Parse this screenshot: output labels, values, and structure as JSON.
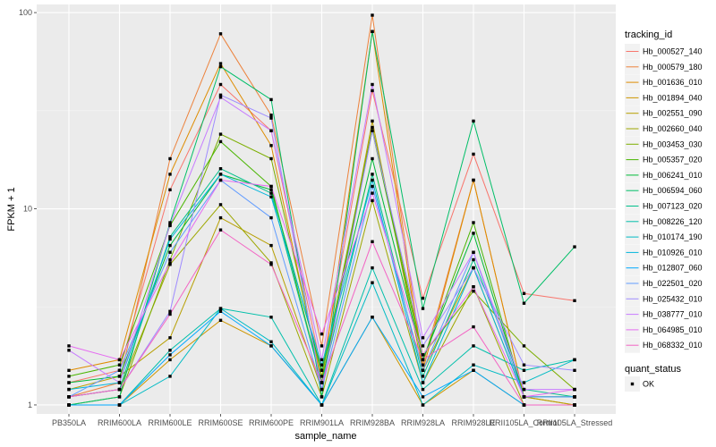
{
  "chart_data": {
    "type": "line",
    "xlabel": "sample_name",
    "ylabel": "FPKM + 1",
    "y_scale": "log10",
    "ylim": [
      0.9,
      110
    ],
    "y_ticks": [
      1,
      10,
      100
    ],
    "y_tick_labels": [
      "1",
      "10",
      "100"
    ],
    "grid": true,
    "legend_position": "right",
    "legend_title": "tracking_id",
    "status_legend_title": "quant_status",
    "status_legend_items": [
      "OK"
    ],
    "categories": [
      "PB350LA",
      "RRIM600LA",
      "RRIM600LE",
      "RRIM600SE",
      "RRIM600PE",
      "RRIM901LA",
      "RRIM928BA",
      "RRIM928LA",
      "RRIM928LE",
      "RRII105LA_Control",
      "RRII105LA_Stressed"
    ],
    "series": [
      {
        "name": "Hb_000527_140",
        "color": "#F8766D",
        "values": [
          1.3,
          1.5,
          12.5,
          43,
          25,
          1.5,
          40,
          3.5,
          19,
          3.7,
          3.4
        ]
      },
      {
        "name": "Hb_000579_180",
        "color": "#EC823C",
        "values": [
          1.1,
          1.3,
          18,
          78,
          30,
          2.0,
          97,
          1.6,
          14,
          1.1,
          1.1
        ]
      },
      {
        "name": "Hb_001636_010",
        "color": "#DE8C00",
        "values": [
          1.5,
          1.7,
          15,
          55,
          21,
          1.3,
          80,
          1.5,
          14,
          1.1,
          1.0
        ]
      },
      {
        "name": "Hb_001894_040",
        "color": "#CD9600",
        "values": [
          1.0,
          1.0,
          1.7,
          2.7,
          2.0,
          1.0,
          2.8,
          1.0,
          1.5,
          1.0,
          1.0
        ]
      },
      {
        "name": "Hb_002551_090",
        "color": "#B79F00",
        "values": [
          1.2,
          1.4,
          2.2,
          9.0,
          6.5,
          1.2,
          28,
          1.5,
          5.0,
          1.1,
          1.0
        ]
      },
      {
        "name": "Hb_002660_040",
        "color": "#9DA700",
        "values": [
          1.1,
          1.2,
          5.2,
          10.5,
          5.3,
          1.1,
          11,
          1.3,
          4.0,
          1.0,
          1.0
        ]
      },
      {
        "name": "Hb_003453_030",
        "color": "#7CAE00",
        "values": [
          1.0,
          1.1,
          5.5,
          24,
          18,
          1.4,
          26,
          1.8,
          3.8,
          2.0,
          1.2
        ]
      },
      {
        "name": "Hb_005357_020",
        "color": "#49B500",
        "values": [
          1.4,
          1.6,
          8.2,
          22,
          13,
          1.3,
          25,
          1.7,
          8.5,
          1.1,
          1.1
        ]
      },
      {
        "name": "Hb_006241_010",
        "color": "#00BA38",
        "values": [
          1.3,
          1.4,
          6.5,
          15,
          12.5,
          1.5,
          18,
          1.7,
          7.5,
          1.1,
          1.1
        ]
      },
      {
        "name": "Hb_006594_060",
        "color": "#00BE67",
        "values": [
          1.0,
          1.1,
          8.5,
          53,
          36,
          1.1,
          80,
          3.1,
          28,
          3.3,
          6.4
        ]
      },
      {
        "name": "Hb_007123_020",
        "color": "#00C08B",
        "values": [
          1.1,
          1.2,
          7.2,
          16,
          12,
          1.3,
          15,
          1.4,
          5.5,
          1.2,
          1.1
        ]
      },
      {
        "name": "Hb_008226_120",
        "color": "#00BFAA",
        "values": [
          1.0,
          1.0,
          1.9,
          3.1,
          2.8,
          1.0,
          5.0,
          1.2,
          2.0,
          1.5,
          1.7
        ]
      },
      {
        "name": "Hb_010174_190",
        "color": "#00BBC4",
        "values": [
          1.0,
          1.0,
          1.4,
          3.1,
          2.1,
          1.0,
          4.2,
          1.0,
          1.6,
          1.3,
          1.7
        ]
      },
      {
        "name": "Hb_010926_010",
        "color": "#00B5DC",
        "values": [
          1.2,
          1.3,
          7.0,
          15,
          11.5,
          1.6,
          14,
          1.3,
          5.0,
          1.1,
          1.1
        ]
      },
      {
        "name": "Hb_012807_060",
        "color": "#00A9FF",
        "values": [
          1.0,
          1.0,
          1.8,
          3.0,
          2.0,
          1.0,
          2.8,
          1.1,
          1.5,
          1.0,
          1.0
        ]
      },
      {
        "name": "Hb_022501_020",
        "color": "#619CFF",
        "values": [
          1.1,
          1.5,
          6.0,
          14,
          9.0,
          1.2,
          13,
          1.5,
          6.0,
          1.1,
          1.1
        ]
      },
      {
        "name": "Hb_025432_010",
        "color": "#9F8CFF",
        "values": [
          1.1,
          1.2,
          3.0,
          38,
          29,
          1.2,
          25,
          2.0,
          5.0,
          1.6,
          1.5
        ]
      },
      {
        "name": "Hb_038777_010",
        "color": "#C77CFF",
        "values": [
          1.9,
          1.3,
          8.3,
          37,
          25,
          1.7,
          43,
          2.2,
          6.0,
          1.2,
          1.2
        ]
      },
      {
        "name": "Hb_064985_010",
        "color": "#E56CF1",
        "values": [
          2.0,
          1.7,
          5.3,
          14,
          13,
          2.3,
          12,
          1.8,
          4.0,
          1.1,
          1.2
        ]
      },
      {
        "name": "Hb_068332_010",
        "color": "#F365C4",
        "values": [
          1.1,
          1.2,
          2.9,
          7.8,
          5.2,
          1.3,
          6.8,
          1.7,
          2.5,
          1.0,
          1.0
        ]
      }
    ]
  }
}
